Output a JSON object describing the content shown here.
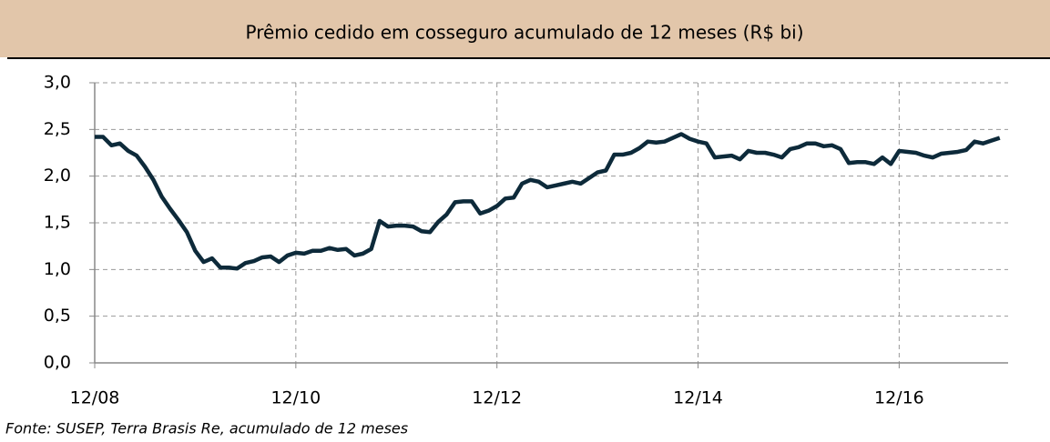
{
  "chart_data": {
    "type": "line",
    "title": "Prêmio cedido em cosseguro acumulado de 12 meses (R$ bi)",
    "source": "Fonte: SUSEP, Terra Brasis Re, acumulado de 12 meses",
    "x": [
      "12/08",
      "01/09",
      "02/09",
      "03/09",
      "04/09",
      "05/09",
      "06/09",
      "07/09",
      "08/09",
      "09/09",
      "10/09",
      "11/09",
      "12/09",
      "01/10",
      "02/10",
      "03/10",
      "04/10",
      "05/10",
      "06/10",
      "07/10",
      "08/10",
      "09/10",
      "10/10",
      "11/10",
      "12/10",
      "01/11",
      "02/11",
      "03/11",
      "04/11",
      "05/11",
      "06/11",
      "07/11",
      "08/11",
      "09/11",
      "10/11",
      "11/11",
      "12/11",
      "01/12",
      "02/12",
      "03/12",
      "04/12",
      "05/12",
      "06/12",
      "07/12",
      "08/12",
      "09/12",
      "10/12",
      "11/12",
      "12/12",
      "01/13",
      "02/13",
      "03/13",
      "04/13",
      "05/13",
      "06/13",
      "07/13",
      "08/13",
      "09/13",
      "10/13",
      "11/13",
      "12/13",
      "01/14",
      "02/14",
      "03/14",
      "04/14",
      "05/14",
      "06/14",
      "07/14",
      "08/14",
      "09/14",
      "10/14",
      "11/14",
      "12/14",
      "01/15",
      "02/15",
      "03/15",
      "04/15",
      "05/15",
      "06/15",
      "07/15",
      "08/15",
      "09/15",
      "10/15",
      "11/15",
      "12/15",
      "01/16",
      "02/16",
      "03/16",
      "04/16",
      "05/16",
      "06/16",
      "07/16",
      "08/16",
      "09/16",
      "10/16",
      "11/16",
      "12/16",
      "01/17",
      "02/17",
      "03/17",
      "04/17",
      "05/17",
      "06/17",
      "07/17",
      "08/17",
      "09/17",
      "10/17",
      "11/17",
      "12/17"
    ],
    "series": [
      {
        "name": "Prêmio cedido",
        "color": "#0d2a3a",
        "values": [
          2.42,
          2.42,
          2.33,
          2.35,
          2.27,
          2.22,
          2.1,
          1.96,
          1.78,
          1.65,
          1.53,
          1.4,
          1.2,
          1.08,
          1.12,
          1.02,
          1.02,
          1.01,
          1.07,
          1.09,
          1.13,
          1.14,
          1.08,
          1.15,
          1.18,
          1.17,
          1.2,
          1.2,
          1.23,
          1.21,
          1.22,
          1.15,
          1.17,
          1.22,
          1.52,
          1.46,
          1.47,
          1.47,
          1.46,
          1.41,
          1.4,
          1.51,
          1.59,
          1.72,
          1.73,
          1.73,
          1.6,
          1.63,
          1.68,
          1.76,
          1.77,
          1.92,
          1.96,
          1.94,
          1.88,
          1.9,
          1.92,
          1.94,
          1.92,
          1.98,
          2.04,
          2.06,
          2.23,
          2.23,
          2.25,
          2.3,
          2.37,
          2.36,
          2.37,
          2.41,
          2.45,
          2.4,
          2.37,
          2.35,
          2.2,
          2.21,
          2.22,
          2.18,
          2.27,
          2.25,
          2.25,
          2.23,
          2.2,
          2.29,
          2.31,
          2.35,
          2.35,
          2.32,
          2.33,
          2.29,
          2.14,
          2.15,
          2.15,
          2.13,
          2.2,
          2.13,
          2.27,
          2.26,
          2.25,
          2.22,
          2.2,
          2.24,
          2.25,
          2.26,
          2.28,
          2.37,
          2.35,
          2.38,
          2.41
        ]
      }
    ],
    "ylim": [
      0,
      3
    ],
    "yticks": [
      {
        "value": 0,
        "label": "0,0"
      },
      {
        "value": 0.5,
        "label": "0,5"
      },
      {
        "value": 1,
        "label": "1,0"
      },
      {
        "value": 1.5,
        "label": "1,5"
      },
      {
        "value": 2,
        "label": "2,0"
      },
      {
        "value": 2.5,
        "label": "2,5"
      },
      {
        "value": 3,
        "label": "3,0"
      }
    ],
    "xticks": [
      "12/08",
      "12/10",
      "12/12",
      "12/14",
      "12/16"
    ],
    "grid": true
  }
}
